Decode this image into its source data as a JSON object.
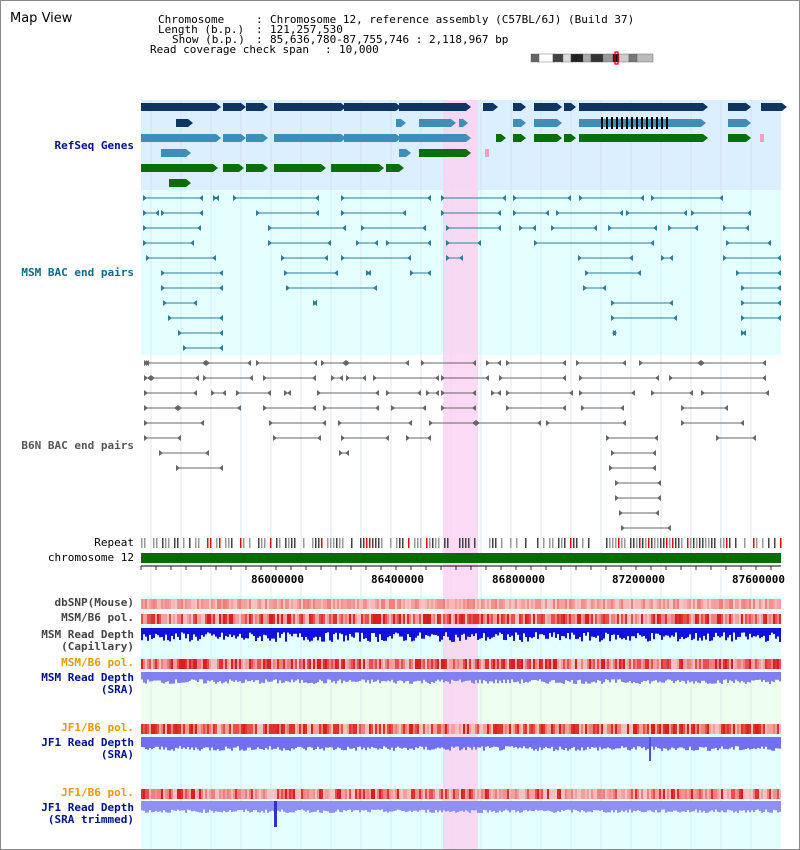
{
  "title": "Map View",
  "header": {
    "chromosome_label": "Chromosome",
    "chromosome_value": "Chromosome 12, reference assembly (C57BL/6J) (Build 37)",
    "length_label": "Length (b.p.)",
    "length_value": "121,257,530",
    "show_label": "Show (b.p.)",
    "show_value": "85,636,780-87,755,746 : 2,118,967 bp",
    "coverage_label": "Read coverage check span",
    "coverage_value": "10,000"
  },
  "tracks": {
    "refseq": "RefSeq Genes",
    "msm_bac": "MSM BAC end pairs",
    "b6n_bac": "B6N BAC end pairs",
    "repeat": "Repeat",
    "chromosome": "chromosome 12",
    "dbsnp": "dbSNP(Mouse)",
    "msm_b6_pol": "MSM/B6 pol.",
    "msm_read_depth_cap_1": "MSM Read Depth",
    "msm_read_depth_cap_2": "(Capillary)",
    "msm_b6_pol_sra": "MSM/B6 pol.",
    "msm_read_depth_sra_1": "MSM Read Depth",
    "msm_read_depth_sra_2": "(SRA)",
    "jf1_b6_pol": "JF1/B6 pol.",
    "jf1_read_depth_1": "JF1 Read Depth",
    "jf1_read_depth_2": "(SRA)",
    "jf1_b6_pol_trim": "JF1/B6 pol.",
    "jf1_read_depth_trim_1": "JF1 Read Depth",
    "jf1_read_depth_trim_2": "(SRA trimmed)"
  },
  "axis": {
    "ticks": [
      "86000000",
      "86400000",
      "86800000",
      "87200000",
      "87600000"
    ]
  },
  "colors": {
    "refseq_bg": "#dcefff",
    "bac_bg": "#e4ffff",
    "gene_dark": "#0f3564",
    "gene_mid": "#3d8fb8",
    "gene_green": "#0a6e0a",
    "msm_pair": "#2d7e96",
    "b6n_pair": "#666666",
    "highlight": "#f9d4f2",
    "chrom_green": "#0a6a0a",
    "snp_pink": "#f4a4a4",
    "pol_red": "#e03030",
    "depth_blue": "#1010e0",
    "sra_blue": "#8080f0",
    "label_blue": "#00108c",
    "label_orange": "#e89a00",
    "label_teal": "#0a6a8a"
  }
}
